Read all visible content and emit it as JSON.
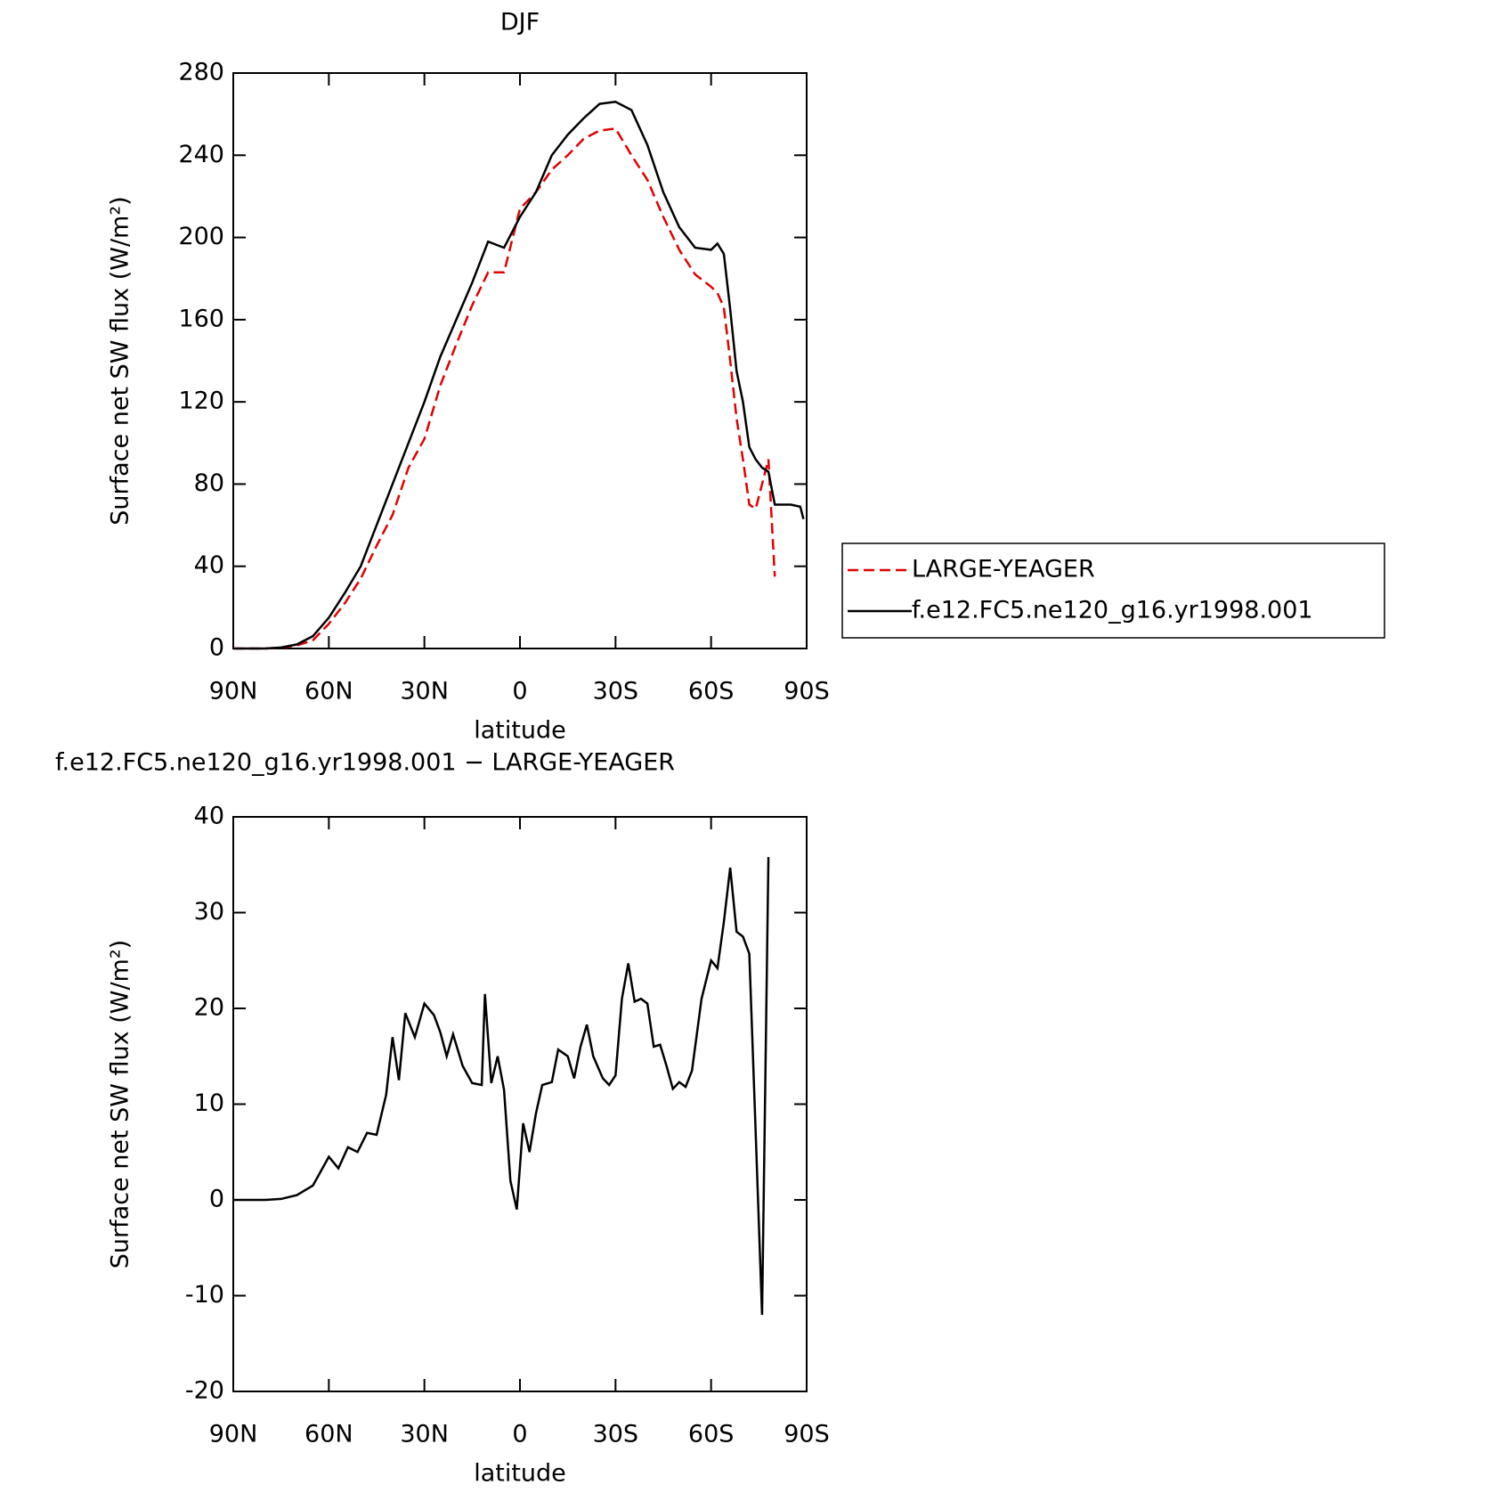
{
  "chart_data": [
    {
      "type": "line",
      "title": "DJF",
      "x_label": "latitude",
      "y_label": "Surface net SW flux (W/m²)",
      "x": [
        90,
        85,
        80,
        75,
        70,
        65,
        60,
        55,
        50,
        45,
        40,
        35,
        30,
        25,
        20,
        15,
        10,
        5,
        0,
        -5,
        -10,
        -15,
        -20,
        -25,
        -30,
        -35,
        -40,
        -45,
        -50,
        -55,
        -60,
        -62,
        -64,
        -66,
        -68,
        -70,
        -72,
        -74,
        -76,
        -78,
        -80,
        -82,
        -85,
        -88,
        -89
      ],
      "series": [
        {
          "name": "LARGE-YEAGER",
          "color": "#e00000",
          "line_style": "dashed",
          "values": [
            0,
            0,
            0,
            0.4,
            1.5,
            4,
            12,
            22,
            34,
            50,
            65,
            88,
            102,
            128,
            148,
            167,
            183,
            183,
            214,
            222,
            233,
            240,
            248,
            252,
            253,
            240,
            228,
            210,
            194,
            182,
            176,
            173,
            166,
            140,
            112,
            92,
            70,
            68,
            80,
            92,
            35,
            null,
            null,
            null,
            null
          ]
        },
        {
          "name": "f.e12.FC5.ne120_g16.yr1998.001",
          "color": "#000000",
          "line_style": "solid",
          "values": [
            0,
            0,
            0,
            0.5,
            2,
            6,
            15,
            27,
            40,
            60,
            80,
            100,
            120,
            142,
            160,
            178,
            198,
            195,
            210,
            222,
            240,
            250,
            258,
            265,
            266,
            262,
            245,
            222,
            205,
            195,
            194,
            197,
            192,
            165,
            135,
            120,
            98,
            92,
            88,
            86,
            70,
            70,
            70,
            69,
            63
          ]
        }
      ],
      "xlim": [
        90,
        -90
      ],
      "xticks": [
        {
          "value": 90,
          "label": "90N"
        },
        {
          "value": 60,
          "label": "60N"
        },
        {
          "value": 30,
          "label": "30N"
        },
        0,
        {
          "value": -30,
          "label": "30S"
        },
        {
          "value": -60,
          "label": "60S"
        },
        {
          "value": -90,
          "label": "90S"
        }
      ],
      "ylim": [
        0,
        280
      ],
      "yticks": [
        0,
        40,
        80,
        120,
        160,
        200,
        240,
        280
      ],
      "legend": "right"
    },
    {
      "type": "line",
      "title": "f.e12.FC5.ne120_g16.yr1998.001 − LARGE-YEAGER",
      "x_label": "latitude",
      "y_label": "Surface net SW flux (W/m²)",
      "x": [
        90,
        85,
        80,
        75,
        70,
        65,
        60,
        57,
        54,
        51,
        48,
        45,
        42,
        40,
        38,
        36,
        33,
        30,
        27,
        25,
        23,
        21,
        18,
        15,
        12,
        11,
        9,
        7,
        5,
        3,
        1,
        -1,
        -3,
        -5,
        -7,
        -10,
        -12,
        -15,
        -17,
        -19,
        -21,
        -23,
        -26,
        -28,
        -30,
        -32,
        -34,
        -36,
        -38,
        -40,
        -42,
        -44,
        -46,
        -48,
        -50,
        -52,
        -54,
        -57,
        -60,
        -62,
        -64,
        -66,
        -68,
        -70,
        -72,
        -74,
        -76,
        -78
      ],
      "series": [
        {
          "color": "#000000",
          "line_style": "solid",
          "values": [
            0,
            0,
            0,
            0.1,
            0.5,
            1.5,
            4.5,
            3.3,
            5.5,
            5,
            7,
            6.8,
            11,
            17,
            12.5,
            19.5,
            17,
            20.5,
            19.3,
            17.5,
            15,
            17.3,
            14,
            12.2,
            12,
            21.5,
            12.2,
            15,
            11.5,
            2,
            -1,
            8,
            5,
            9,
            12,
            12.3,
            15.7,
            15,
            12.7,
            16,
            18.3,
            15,
            12.7,
            12,
            13,
            21,
            24.7,
            20.7,
            21,
            20.5,
            16,
            16.2,
            14,
            11.6,
            12.3,
            11.8,
            13.5,
            21,
            25,
            24.2,
            29,
            34.7,
            28,
            27.5,
            25.7,
            7,
            -12,
            35.8
          ]
        }
      ],
      "xlim": [
        90,
        -90
      ],
      "xticks": [
        {
          "value": 90,
          "label": "90N"
        },
        {
          "value": 60,
          "label": "60N"
        },
        {
          "value": 30,
          "label": "30N"
        },
        0,
        {
          "value": -30,
          "label": "30S"
        },
        {
          "value": -60,
          "label": "60S"
        },
        {
          "value": -90,
          "label": "90S"
        }
      ],
      "ylim": [
        -20,
        40
      ],
      "yticks": [
        -20,
        -10,
        0,
        10,
        20,
        30,
        40
      ]
    }
  ]
}
